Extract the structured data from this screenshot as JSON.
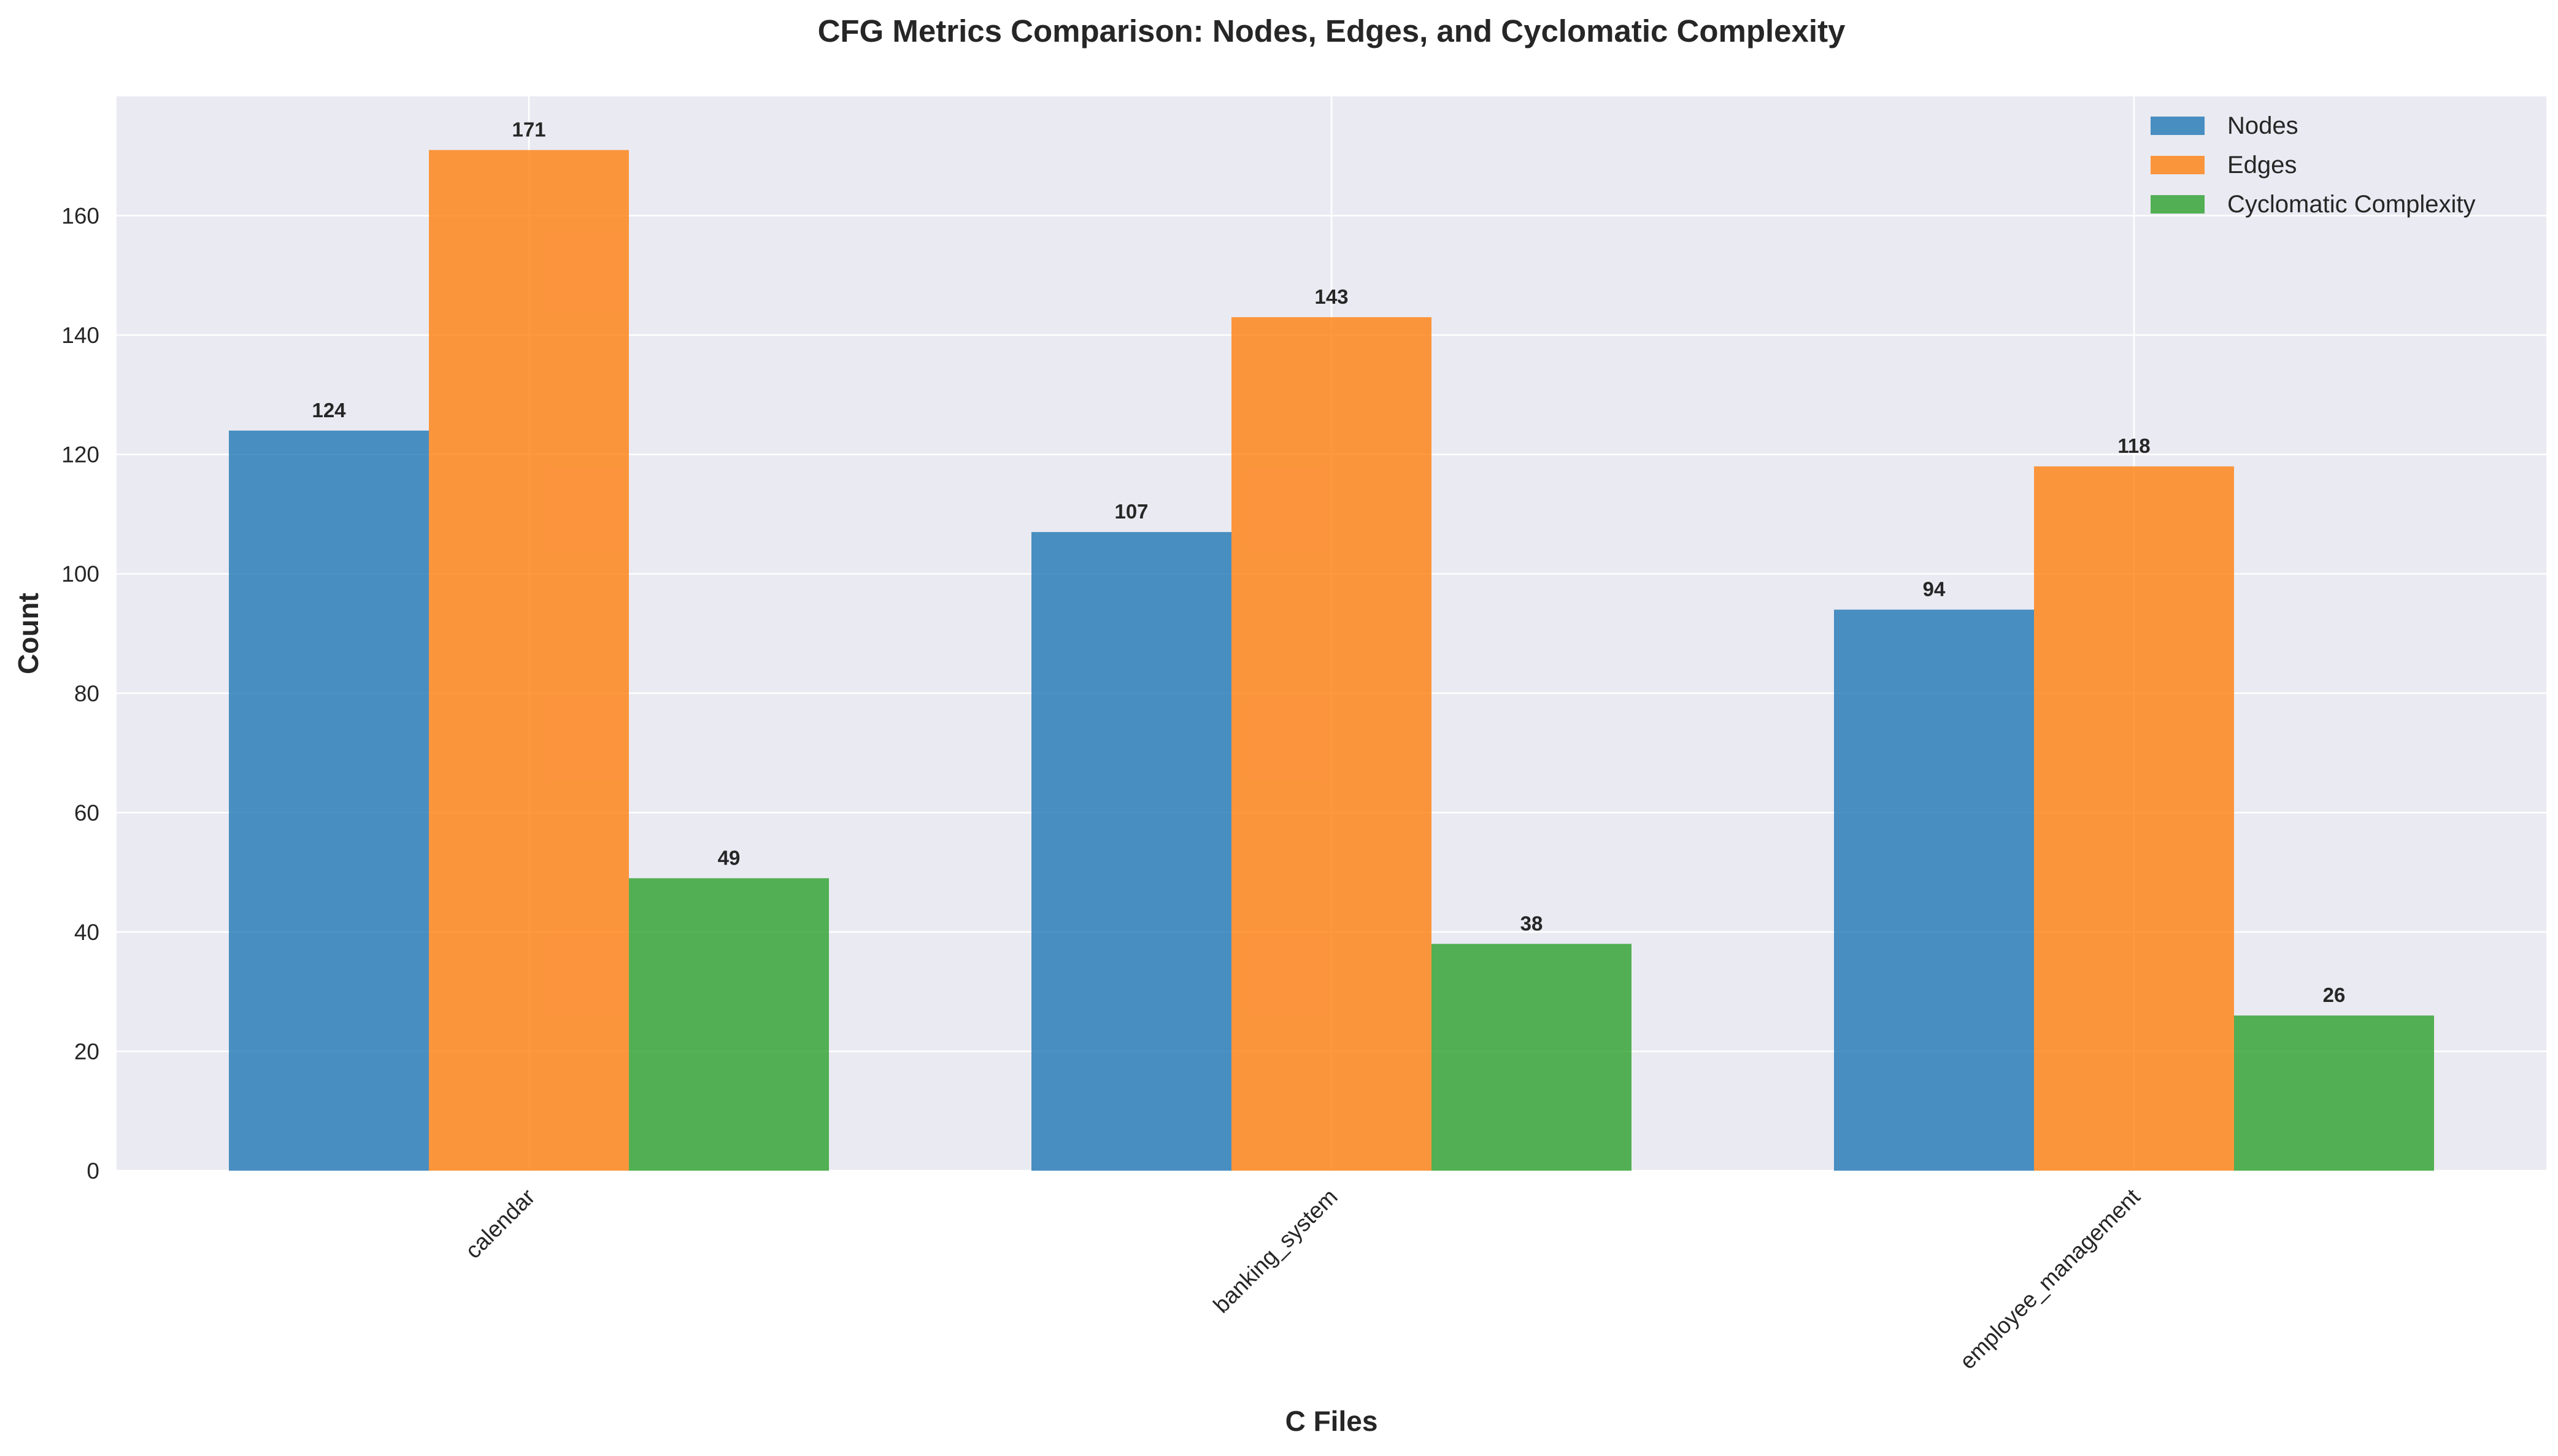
{
  "chart_data": {
    "type": "bar",
    "title": "CFG Metrics Comparison: Nodes, Edges, and Cyclomatic Complexity",
    "xlabel": "C Files",
    "ylabel": "Count",
    "categories": [
      "calendar",
      "banking_system",
      "employee_management"
    ],
    "series": [
      {
        "name": "Nodes",
        "color": "#1f77b4",
        "values": [
          124,
          107,
          94
        ]
      },
      {
        "name": "Edges",
        "color": "#ff7f0e",
        "values": [
          171,
          143,
          118
        ]
      },
      {
        "name": "Cyclomatic Complexity",
        "color": "#2ca02c",
        "values": [
          49,
          38,
          26
        ]
      }
    ],
    "ylim": [
      0,
      180
    ],
    "yticks": [
      "0",
      "20",
      "40",
      "60",
      "80",
      "100",
      "120",
      "140",
      "160"
    ],
    "grid": true,
    "legend_position": "top-right",
    "background_color": "#eaeaf2",
    "bar_opacity": 0.8
  }
}
